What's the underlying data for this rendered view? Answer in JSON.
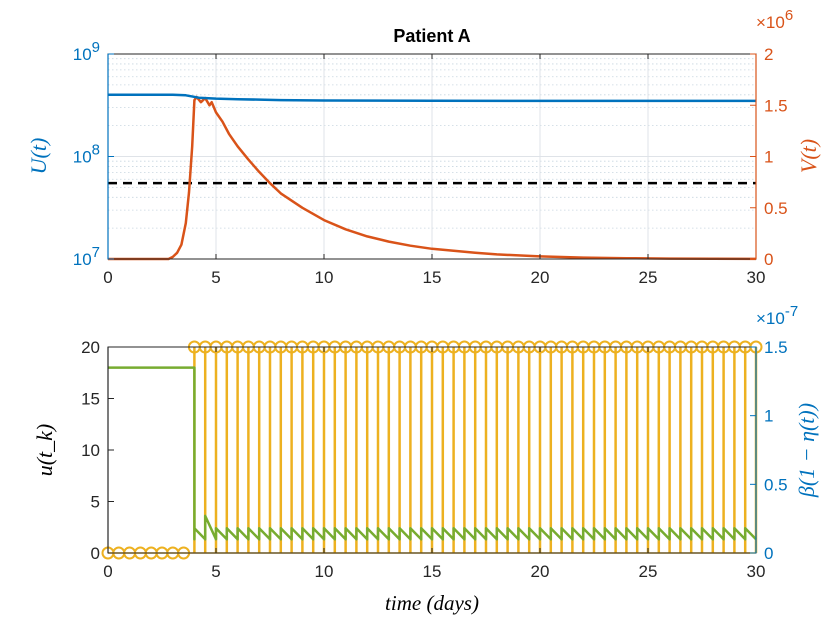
{
  "chart_data": [
    {
      "type": "line",
      "title": "Patient A",
      "xlabel": "",
      "xlim": [
        0,
        30
      ],
      "x_ticks": [
        "0",
        "5",
        "10",
        "15",
        "20",
        "25",
        "30"
      ],
      "left_axis": {
        "label": "U(t)",
        "scale": "log",
        "ylim": [
          10000000,
          1000000000
        ],
        "ticks": [
          {
            "base": "10",
            "exp": "7"
          },
          {
            "base": "10",
            "exp": "8"
          },
          {
            "base": "10",
            "exp": "9"
          }
        ],
        "color": "#0072BD"
      },
      "right_axis": {
        "label": "V(t)",
        "scale": "linear",
        "ylim": [
          0,
          2
        ],
        "ticks": [
          "0",
          "0.5",
          "1",
          "1.5",
          "2"
        ],
        "multiplier": "×10",
        "multiplier_exp": "6",
        "color": "#D95319"
      },
      "grid": true,
      "threshold_line": {
        "y": 55000000,
        "style": "dashed",
        "color": "#000000"
      },
      "series": [
        {
          "name": "U(t)",
          "axis": "left",
          "color": "#0072BD",
          "x": [
            0,
            3,
            3.6,
            4.2,
            5,
            6,
            8,
            10,
            15,
            20,
            25,
            30
          ],
          "y": [
            400000000,
            400000000,
            395000000,
            375000000,
            367000000,
            362000000,
            355000000,
            352000000,
            350000000,
            349000000,
            349000000,
            349000000
          ]
        },
        {
          "name": "V(t)",
          "axis": "right",
          "color": "#D95319",
          "x": [
            0,
            2.8,
            3.0,
            3.2,
            3.4,
            3.6,
            3.75,
            3.9,
            4.0,
            4.1,
            4.3,
            4.5,
            4.7,
            4.8,
            5.0,
            5.3,
            5.6,
            6,
            6.5,
            7,
            7.5,
            8,
            9,
            10,
            11,
            12,
            13,
            14,
            15,
            16,
            17,
            18,
            20,
            22,
            24,
            26,
            28,
            30
          ],
          "y": [
            0.0,
            0.0,
            0.02,
            0.06,
            0.14,
            0.35,
            0.65,
            1.1,
            1.55,
            1.58,
            1.53,
            1.57,
            1.5,
            1.53,
            1.43,
            1.34,
            1.22,
            1.1,
            0.97,
            0.85,
            0.74,
            0.64,
            0.5,
            0.38,
            0.29,
            0.22,
            0.17,
            0.13,
            0.1,
            0.08,
            0.06,
            0.045,
            0.025,
            0.014,
            0.008,
            0.004,
            0.002,
            0.001
          ]
        }
      ]
    },
    {
      "type": "line",
      "title": "",
      "xlabel": "time (days)",
      "xlim": [
        0,
        30
      ],
      "x_ticks": [
        "0",
        "5",
        "10",
        "15",
        "20",
        "25",
        "30"
      ],
      "left_axis": {
        "label": "u(t_k)",
        "scale": "linear",
        "ylim": [
          0,
          20
        ],
        "ticks": [
          "0",
          "5",
          "10",
          "15",
          "20"
        ],
        "color": "#000000"
      },
      "right_axis": {
        "label": "β(1 − η(t))",
        "scale": "linear",
        "ylim": [
          0,
          1.5
        ],
        "ticks": [
          "0",
          "0.5",
          "1",
          "1.5"
        ],
        "multiplier": "×10",
        "multiplier_exp": "-7",
        "color": "#0072BD"
      },
      "grid": false,
      "series": [
        {
          "name": "u(t_k)",
          "axis": "left",
          "type": "stem",
          "color": "#EDB120",
          "x": [
            0,
            0.5,
            1,
            1.5,
            2,
            2.5,
            3,
            3.5,
            4,
            4.5,
            5,
            5.5,
            6,
            6.5,
            7,
            7.5,
            8,
            8.5,
            9,
            9.5,
            10,
            10.5,
            11,
            11.5,
            12,
            12.5,
            13,
            13.5,
            14,
            14.5,
            15,
            15.5,
            16,
            16.5,
            17,
            17.5,
            18,
            18.5,
            19,
            19.5,
            20,
            20.5,
            21,
            21.5,
            22,
            22.5,
            23,
            23.5,
            24,
            24.5,
            25,
            25.5,
            26,
            26.5,
            27,
            27.5,
            28,
            28.5,
            29,
            29.5,
            30
          ],
          "y": [
            0,
            0,
            0,
            0,
            0,
            0,
            0,
            0,
            20,
            20,
            20,
            20,
            20,
            20,
            20,
            20,
            20,
            20,
            20,
            20,
            20,
            20,
            20,
            20,
            20,
            20,
            20,
            20,
            20,
            20,
            20,
            20,
            20,
            20,
            20,
            20,
            20,
            20,
            20,
            20,
            20,
            20,
            20,
            20,
            20,
            20,
            20,
            20,
            20,
            20,
            20,
            20,
            20,
            20,
            20,
            20,
            20,
            20,
            20,
            20,
            20
          ]
        },
        {
          "name": "β(1 − η(t))",
          "axis": "right",
          "color": "#77AC30",
          "initial_value": 1.35,
          "switch_time": 4,
          "pulse_period": 0.5,
          "post_min": 0.1,
          "post_max": 0.18,
          "first_peak": 0.27
        }
      ]
    }
  ]
}
